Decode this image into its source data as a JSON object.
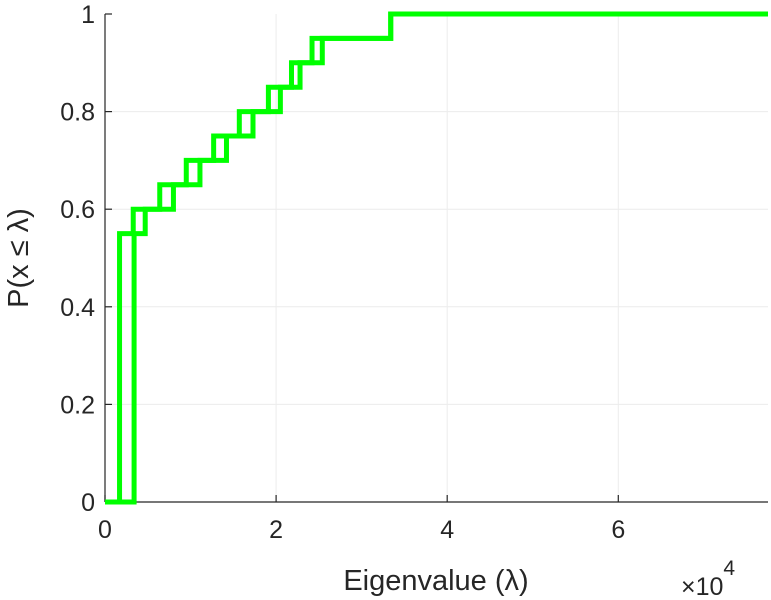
{
  "chart_data": {
    "type": "line",
    "step": true,
    "xlabel": "Eigenvalue (λ)",
    "ylabel": "P(x ≤ λ)",
    "x_multiplier": "×10",
    "x_multiplier_exponent": "4",
    "xlim": [
      0,
      77500
    ],
    "ylim": [
      0,
      1
    ],
    "grid": true,
    "xticks": [
      0,
      20000,
      40000,
      60000
    ],
    "xtick_labels": [
      "0",
      "2",
      "4",
      "6"
    ],
    "yticks": [
      0,
      0.2,
      0.4,
      0.6,
      0.8,
      1
    ],
    "ytick_labels": [
      "0",
      "0.2",
      "0.4",
      "0.6",
      "0.8",
      "1"
    ],
    "series_color": "#00ff00",
    "series": [
      {
        "x": [
          1700,
          15700,
          28800,
          32000,
          33400,
          77500
        ],
        "y": [
          0.55,
          0.8,
          0.95,
          0.95,
          1,
          1
        ],
        "steps_x": [
          1700,
          3300,
          6400,
          9500,
          12700,
          15700,
          19100,
          21800,
          24200,
          31800,
          33400,
          77500
        ],
        "steps_y": [
          0.55,
          0.6,
          0.65,
          0.7,
          0.75,
          0.8,
          0.85,
          0.9,
          0.95,
          0.95,
          1,
          1
        ]
      },
      {
        "steps_x": [
          0,
          3400,
          4700,
          8000,
          11100,
          14200,
          17300,
          20500,
          22800,
          25400,
          33400,
          77500
        ],
        "steps_y": [
          0,
          0.55,
          0.6,
          0.65,
          0.7,
          0.75,
          0.8,
          0.85,
          0.9,
          0.95,
          1,
          1
        ]
      }
    ]
  }
}
